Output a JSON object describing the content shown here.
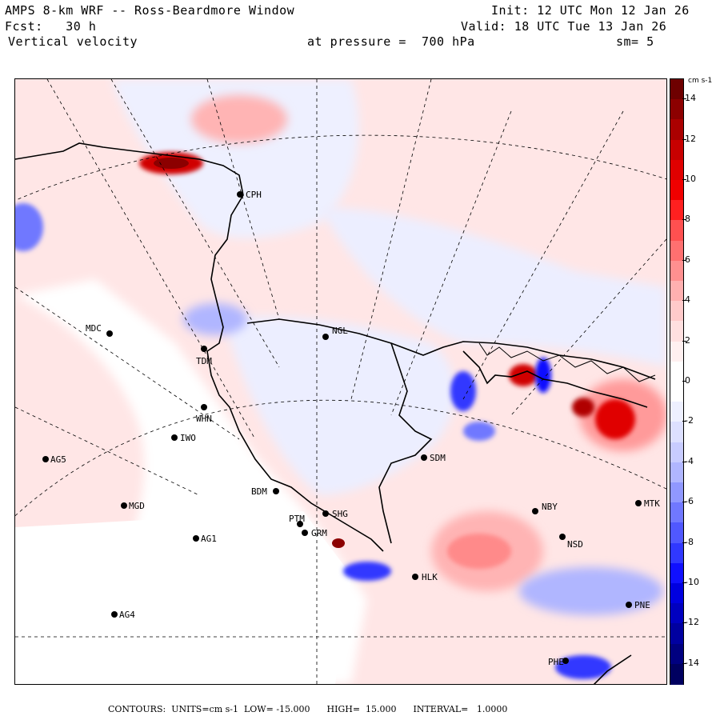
{
  "header": {
    "line1_left": "AMPS 8-km WRF -- Ross-Beardmore Window",
    "line1_right": "Init: 12 UTC Mon 12 Jan 26",
    "line2_left": "Fcst:   30 h",
    "line2_right": "Valid: 18 UTC Tue 13 Jan 26",
    "line3_left": "Vertical velocity",
    "line3_mid": "at pressure =  700 hPa",
    "line3_right": "sm= 5"
  },
  "colorbar": {
    "units": "cm s-1",
    "ticks": [
      "14",
      "12",
      "10",
      "8",
      "6",
      "4",
      "2",
      "0",
      "-2",
      "-4",
      "-6",
      "-8",
      "-10",
      "-12",
      "-14"
    ],
    "colors": [
      "#6e0000",
      "#8c0000",
      "#aa0000",
      "#c80000",
      "#e00000",
      "#f00000",
      "#ff2020",
      "#ff5050",
      "#ff7070",
      "#ff9090",
      "#ffb0b0",
      "#ffcaca",
      "#ffe0e0",
      "#fff0f0",
      "#ffffff",
      "#ffffff",
      "#eef0ff",
      "#dde0ff",
      "#c8ccff",
      "#b0b6ff",
      "#9098ff",
      "#7078ff",
      "#5058ff",
      "#3038ff",
      "#1010ff",
      "#0000e0",
      "#0000c0",
      "#0000a0",
      "#000080",
      "#000060"
    ]
  },
  "stations": [
    {
      "name": "CPH"
    },
    {
      "name": "MDC"
    },
    {
      "name": "TDM"
    },
    {
      "name": "NGL"
    },
    {
      "name": "WHN"
    },
    {
      "name": "IWO"
    },
    {
      "name": "AG5"
    },
    {
      "name": "SDM"
    },
    {
      "name": "BDM"
    },
    {
      "name": "MGD"
    },
    {
      "name": "SHG"
    },
    {
      "name": "PTM"
    },
    {
      "name": "GRM"
    },
    {
      "name": "AG1"
    },
    {
      "name": "NBY"
    },
    {
      "name": "MTK"
    },
    {
      "name": "NSD"
    },
    {
      "name": "HLK"
    },
    {
      "name": "AG4"
    },
    {
      "name": "PNE"
    },
    {
      "name": "PHE"
    }
  ],
  "footer": {
    "text": "CONTOURS:  UNITS=cm s-1  LOW= -15.000      HIGH=  15.000      INTERVAL=   1.0000"
  }
}
